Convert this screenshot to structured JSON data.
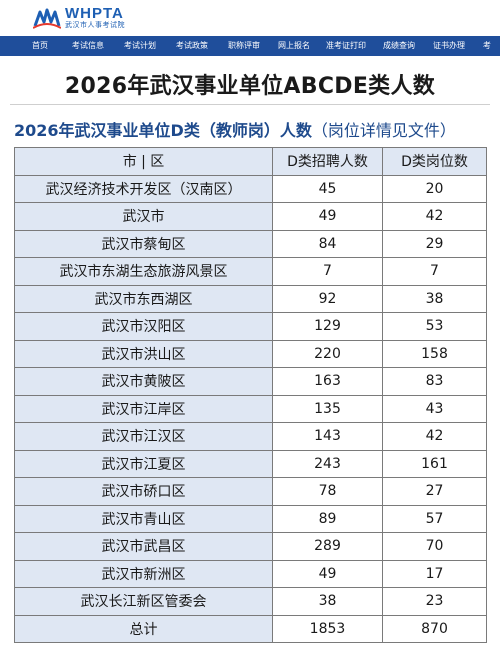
{
  "header": {
    "logo_en": "WHPTA",
    "logo_cn": "武汉市人事考试院",
    "brand_color": "#1f4e9b",
    "nav": [
      "首页",
      "考试信息",
      "考试计划",
      "考试政策",
      "职称评审",
      "网上报名",
      "准考证打印",
      "成绩查询",
      "证书办理",
      "考"
    ]
  },
  "main_title": "2026年武汉事业单位ABCDE类人数",
  "sub_title": "2026年武汉事业单位D类（教师岗）人数",
  "sub_note": "（岗位详情见文件）",
  "table": {
    "columns": [
      "市 | 区",
      "D类招聘人数",
      "D类岗位数"
    ],
    "rows": [
      [
        "武汉经济技术开发区（汉南区）",
        "45",
        "20"
      ],
      [
        "武汉市",
        "49",
        "42"
      ],
      [
        "武汉市蔡甸区",
        "84",
        "29"
      ],
      [
        "武汉市东湖生态旅游风景区",
        "7",
        "7"
      ],
      [
        "武汉市东西湖区",
        "92",
        "38"
      ],
      [
        "武汉市汉阳区",
        "129",
        "53"
      ],
      [
        "武汉市洪山区",
        "220",
        "158"
      ],
      [
        "武汉市黄陂区",
        "163",
        "83"
      ],
      [
        "武汉市江岸区",
        "135",
        "43"
      ],
      [
        "武汉市江汉区",
        "143",
        "42"
      ],
      [
        "武汉市江夏区",
        "243",
        "161"
      ],
      [
        "武汉市硚口区",
        "78",
        "27"
      ],
      [
        "武汉市青山区",
        "89",
        "57"
      ],
      [
        "武汉市武昌区",
        "289",
        "70"
      ],
      [
        "武汉市新洲区",
        "49",
        "17"
      ],
      [
        "武汉长江新区管委会",
        "38",
        "23"
      ],
      [
        "总计",
        "1853",
        "870"
      ]
    ]
  }
}
